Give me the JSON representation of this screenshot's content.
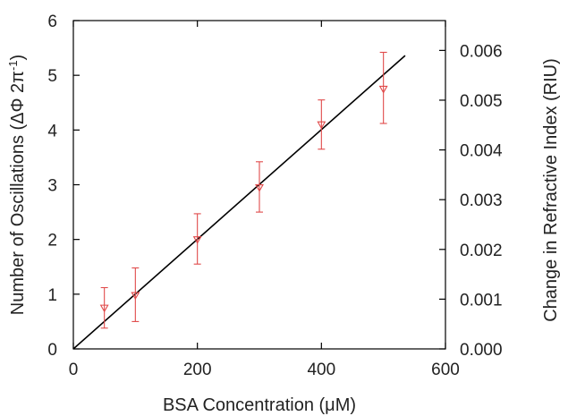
{
  "chart_data": {
    "type": "scatter",
    "xlabel": "BSA Concentration (μM)",
    "ylabel": "Number of Oscillations (ΔΦ 2π",
    "ylabel_sup": "-1",
    "ylabel_close": ")",
    "y2label": "Change in Refractive Index (RIU)",
    "xlim": [
      0,
      600
    ],
    "ylim": [
      0,
      6
    ],
    "y2lim": [
      0,
      0.0066
    ],
    "xticks": [
      "0",
      "200",
      "400",
      "600"
    ],
    "xtick_values": [
      0,
      200,
      400,
      600
    ],
    "yticks": [
      "0",
      "1",
      "2",
      "3",
      "4",
      "5",
      "6"
    ],
    "ytick_values": [
      0,
      1,
      2,
      3,
      4,
      5,
      6
    ],
    "y2ticks": [
      "0.000",
      "0.001",
      "0.002",
      "0.003",
      "0.004",
      "0.005",
      "0.006"
    ],
    "y2tick_values": [
      0,
      0.001,
      0.002,
      0.003,
      0.004,
      0.005,
      0.006
    ],
    "grid": false,
    "series": [
      {
        "x": [
          50,
          100,
          200,
          300,
          400,
          500
        ],
        "y": [
          0.75,
          0.98,
          2.0,
          2.95,
          4.1,
          4.75
        ],
        "yerr_low": [
          0.38,
          0.5,
          1.55,
          2.5,
          3.65,
          4.12
        ],
        "yerr_high": [
          1.12,
          1.48,
          2.47,
          3.42,
          4.55,
          5.42
        ],
        "color": "#e04a4a",
        "marker": "triangle-down"
      }
    ],
    "fit_line": {
      "x": [
        0,
        535
      ],
      "y": [
        0,
        5.36
      ],
      "color": "#000000"
    }
  }
}
